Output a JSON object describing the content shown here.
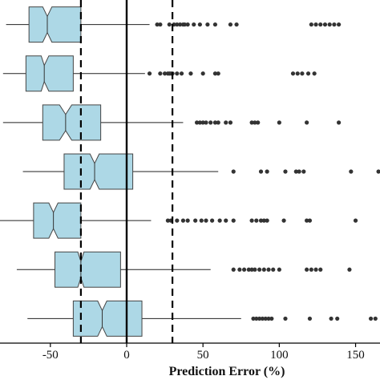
{
  "chart_data": {
    "type": "boxplot",
    "orientation": "horizontal",
    "notched": true,
    "xlabel": "Prediction Error (%)",
    "xlim": [
      -83,
      166
    ],
    "x_ticks": [
      -50,
      0,
      50,
      100,
      150
    ],
    "x_tick_labels": [
      "-50",
      "0",
      "50",
      "100",
      "150"
    ],
    "reference_lines": [
      {
        "value": 0,
        "style": "solid"
      },
      {
        "value": -30,
        "style": "dashed"
      },
      {
        "value": 30,
        "style": "dashed"
      }
    ],
    "box_color": "#add8e6",
    "outlier_color": "#333333",
    "boxes": [
      {
        "whislo": -79,
        "q1": -64,
        "med": -52,
        "q3": -30,
        "whishi": 15,
        "notch_lo": -55,
        "notch_hi": -49,
        "outliers": [
          20,
          22,
          28,
          31,
          33,
          35,
          37,
          38,
          40,
          44,
          48,
          53,
          58,
          68,
          72,
          121,
          124,
          127,
          130,
          133,
          136,
          139
        ]
      },
      {
        "whislo": -81,
        "q1": -66,
        "med": -54,
        "q3": -35,
        "whishi": 12,
        "notch_lo": -56,
        "notch_hi": -51,
        "outliers": [
          15,
          22,
          25,
          27,
          28,
          29,
          30,
          33,
          36,
          42,
          50,
          58,
          60,
          109,
          112,
          115,
          119,
          123
        ]
      },
      {
        "whislo": -81,
        "q1": -55,
        "med": -40,
        "q3": -17,
        "whishi": 37,
        "notch_lo": -44,
        "notch_hi": -36,
        "outliers": [
          46,
          48,
          50,
          52,
          55,
          58,
          60,
          65,
          68,
          82,
          84,
          86,
          100,
          118,
          139
        ]
      },
      {
        "whislo": -68,
        "q1": -41,
        "med": -21,
        "q3": 4,
        "whishi": 60,
        "notch_lo": -24,
        "notch_hi": -18,
        "outliers": [
          70,
          88,
          92,
          104,
          111,
          113,
          116,
          147,
          165
        ]
      },
      {
        "whislo": -83,
        "q1": -61,
        "med": -48,
        "q3": -30,
        "whishi": 16,
        "notch_lo": -51,
        "notch_hi": -45,
        "outliers": [
          27,
          29,
          33,
          37,
          40,
          45,
          49,
          52,
          56,
          61,
          65,
          70,
          82,
          85,
          88,
          90,
          92,
          103,
          118,
          120,
          150
        ]
      },
      {
        "whislo": -72,
        "q1": -47,
        "med": -30,
        "q3": -4,
        "whishi": 55,
        "notch_lo": -32,
        "notch_hi": -28,
        "outliers": [
          70,
          74,
          77,
          80,
          82,
          84,
          87,
          90,
          93,
          96,
          100,
          118,
          121,
          124,
          127,
          146
        ]
      },
      {
        "whislo": -65,
        "q1": -35,
        "med": -16,
        "q3": 10,
        "whishi": 75,
        "notch_lo": -19,
        "notch_hi": -13,
        "outliers": [
          83,
          85,
          87,
          89,
          91,
          93,
          95,
          104,
          120,
          134,
          138,
          160,
          163
        ]
      }
    ]
  }
}
